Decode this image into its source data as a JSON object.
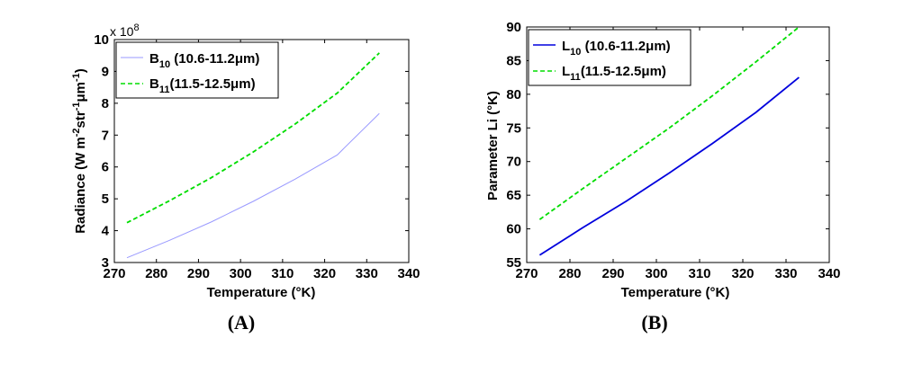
{
  "chart_data": [
    {
      "type": "line",
      "panel_label": "(A)",
      "xlabel": "Temperature (°K)",
      "ylabel": "Radiance (W m-2str-1μm-1)",
      "ylabel_parts": {
        "a": "Radiance (W m",
        "b": "-2",
        "c": "str",
        "d": "-1",
        "e": "μm",
        "f": "-1",
        "g": ")"
      },
      "multiplier": {
        "base": "x 10",
        "exp": "8"
      },
      "xlim": [
        270,
        340
      ],
      "ylim": [
        3,
        10
      ],
      "xticks": [
        "270",
        "280",
        "290",
        "300",
        "310",
        "320",
        "330",
        "340"
      ],
      "yticks": [
        "3",
        "4",
        "5",
        "6",
        "7",
        "8",
        "9",
        "10"
      ],
      "x": [
        273,
        283,
        293,
        303,
        313,
        323,
        333
      ],
      "legend_position": "top-left",
      "series": [
        {
          "name": "B10 (10.6-11.2μm)",
          "label_main": "B",
          "label_sub": "10",
          "label_rest": " (10.6-11.2",
          "label_mu": "μ",
          "label_end": "m)",
          "color": "#9999ff",
          "dash": "",
          "values": [
            3.15,
            3.69,
            4.27,
            4.92,
            5.62,
            6.38,
            7.68
          ]
        },
        {
          "name": "B11(11.5-12.5μm)",
          "label_main": "B",
          "label_sub": "11",
          "label_rest": "(11.5-12.5",
          "label_mu": "μ",
          "label_end": "m)",
          "color": "#00dd00",
          "dash": "5,3",
          "values": [
            4.25,
            4.93,
            5.66,
            6.47,
            7.35,
            8.32,
            9.58
          ]
        }
      ]
    },
    {
      "type": "line",
      "panel_label": "(B)",
      "xlabel": "Temperature (°K)",
      "ylabel": "Parameter Li (°K)",
      "xlim": [
        270,
        340
      ],
      "ylim": [
        55,
        90
      ],
      "xticks": [
        "270",
        "280",
        "290",
        "300",
        "310",
        "320",
        "330",
        "340"
      ],
      "yticks": [
        "55",
        "60",
        "65",
        "70",
        "75",
        "80",
        "85",
        "90"
      ],
      "x": [
        273,
        283,
        293,
        303,
        313,
        323,
        333
      ],
      "legend_position": "top-left",
      "series": [
        {
          "name": "L10 (10.6-11.2μm)",
          "label_main": "L",
          "label_sub": "10",
          "label_rest": " (10.6-11.2",
          "label_mu": "μ",
          "label_end": "m)",
          "color": "#0000dd",
          "dash": "",
          "values": [
            56.1,
            60.2,
            64.1,
            68.3,
            72.7,
            77.3,
            82.5
          ]
        },
        {
          "name": "L11(11.5-12.5μm)",
          "label_main": "L",
          "label_sub": "11",
          "label_rest": "(11.5-12.5",
          "label_mu": "μ",
          "label_end": "m)",
          "color": "#00dd00",
          "dash": "5,3",
          "values": [
            61.4,
            66.0,
            70.5,
            75.0,
            79.8,
            84.8,
            90.0
          ]
        }
      ]
    }
  ]
}
